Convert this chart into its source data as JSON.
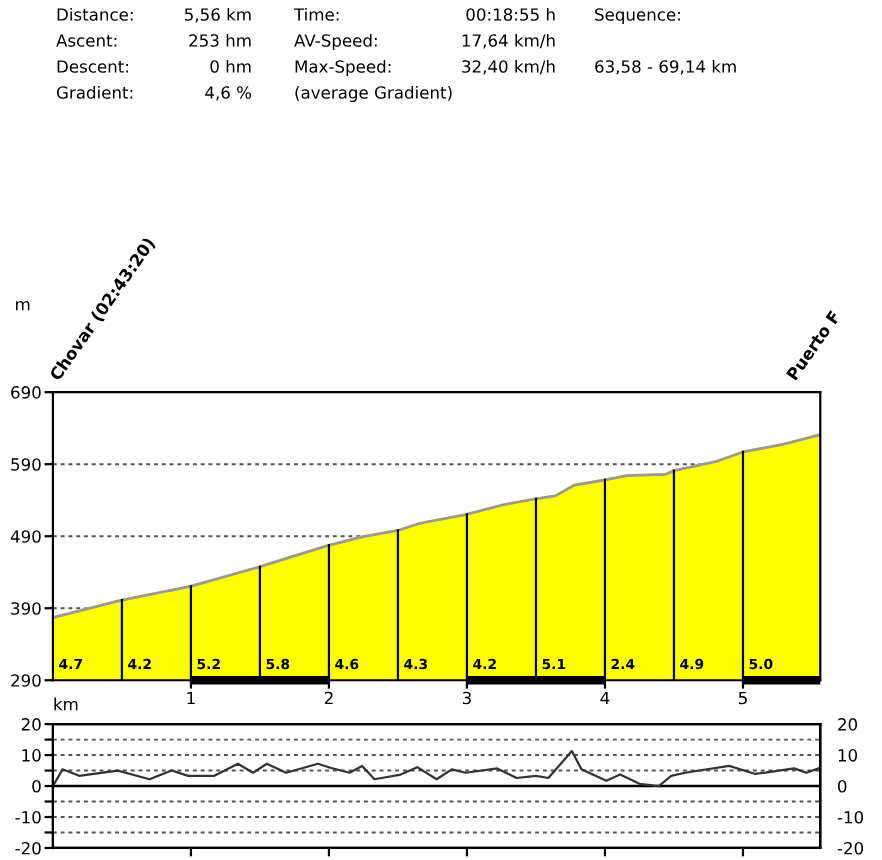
{
  "chart_data": [
    {
      "type": "area",
      "color": "#ffff00",
      "x": [
        0,
        0.49,
        0.99,
        1.49,
        1.99,
        2.24,
        2.5,
        2.66,
        2.99,
        3.27,
        3.5,
        3.64,
        3.78,
        3.99,
        4.16,
        4.44,
        4.5,
        4.81,
        5.0,
        5.28,
        5.56
      ],
      "values": [
        377,
        401,
        420,
        447,
        477,
        489,
        498,
        508,
        520,
        534,
        542,
        546,
        561,
        568,
        574,
        576,
        581,
        594,
        607,
        617,
        631
      ],
      "xlim": [
        0,
        5.56
      ],
      "xticks": [
        1,
        2,
        3,
        4,
        5
      ],
      "ylim": [
        290,
        690
      ],
      "yticks": [
        290,
        390,
        490,
        590,
        690
      ],
      "xlabel": "km",
      "ylabel": "m",
      "grid": "y",
      "annotations": [
        "Distance:",
        "5,56 km",
        "Time:",
        "00:18:55 h",
        "Sequence:",
        "Ascent:",
        "253 hm",
        "AV-Speed:",
        "17,64 km/h",
        "Descent:",
        "0 hm",
        "Max-Speed:",
        "32,40 km/h",
        "63,58 - 69,14 km",
        "Gradient:",
        "4,6 %",
        "(average Gradient)",
        "Chovar (02:43:20)",
        "Puerto F",
        {
          "text": "4.7",
          "x": 0,
          "y": 290
        },
        {
          "text": "4.2",
          "x": 0.5,
          "y": 290
        },
        {
          "text": "5.2",
          "x": 1.0,
          "y": 290
        },
        {
          "text": "5.8",
          "x": 1.5,
          "y": 290
        },
        {
          "text": "4.6",
          "x": 2.0,
          "y": 290
        },
        {
          "text": "4.3",
          "x": 2.5,
          "y": 290
        },
        {
          "text": "4.2",
          "x": 3.0,
          "y": 290
        },
        {
          "text": "5.1",
          "x": 3.5,
          "y": 290
        },
        {
          "text": "2.4",
          "x": 4.0,
          "y": 290
        },
        {
          "text": "4.9",
          "x": 4.5,
          "y": 290
        },
        {
          "text": "5.0",
          "x": 5.0,
          "y": 290
        }
      ]
    },
    {
      "type": "line",
      "color": "#333333",
      "x": [
        0,
        0.07,
        0.19,
        0.47,
        0.7,
        0.86,
        0.98,
        1.17,
        1.34,
        1.45,
        1.55,
        1.69,
        1.92,
        2.01,
        2.15,
        2.24,
        2.33,
        2.52,
        2.64,
        2.78,
        2.89,
        2.99,
        3.22,
        3.36,
        3.5,
        3.59,
        3.76,
        3.83,
        4.01,
        4.11,
        4.25,
        4.39,
        4.48,
        4.58,
        4.9,
        5.09,
        5.37,
        5.46,
        5.56
      ],
      "values": [
        0,
        5.4,
        3.3,
        5,
        2.2,
        5,
        3.3,
        3.3,
        7.2,
        4.3,
        7.2,
        4.3,
        7.2,
        5.9,
        4.3,
        6.5,
        2.2,
        3.7,
        6.1,
        2.2,
        5.4,
        4.3,
        5.7,
        2.6,
        3.3,
        2.6,
        11.3,
        5.4,
        1.7,
        3.7,
        0.7,
        0,
        3.3,
        4.3,
        6.5,
        3.9,
        5.7,
        4.3,
        5.9
      ],
      "xlim": [
        0,
        5.56
      ],
      "xticks": [
        {
          "value": 1,
          "label": null
        },
        {
          "value": 2,
          "label": null
        },
        {
          "value": 3,
          "label": null
        },
        {
          "value": 4,
          "label": null
        },
        {
          "value": 5,
          "label": null
        }
      ],
      "ylim": [
        -20,
        20
      ],
      "yticks": [
        -20,
        {
          "value": -15,
          "label": null
        },
        -10,
        {
          "value": -5,
          "label": null
        },
        0,
        {
          "value": 5,
          "label": null
        },
        10,
        {
          "value": 15,
          "label": null
        },
        20
      ],
      "y2lim": [
        -20,
        20
      ],
      "y2ticks": [
        -20,
        -10,
        0,
        10,
        20
      ],
      "grid": "y",
      "tick_labels": "y"
    }
  ]
}
